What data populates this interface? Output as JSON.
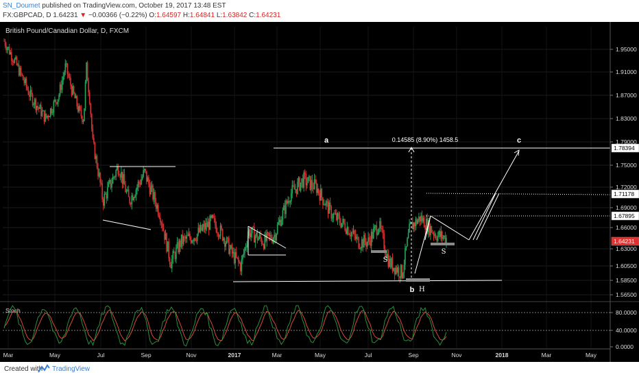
{
  "header": {
    "author": "SN_Doumet",
    "published": "published on TradingView.com, October 19, 2017 13:48 EST",
    "symbol": "FX:GBPCAD, D",
    "last": "1.64231",
    "change": "−0.00366 (−0.22%)",
    "o_label": "O:",
    "o_value": "1.64597",
    "h_label": "H:",
    "h_value": "1.64841",
    "l_label": "L:",
    "l_value": "1.63842",
    "c_label": "C:",
    "c_value": "1.64231"
  },
  "footer": {
    "created": "Created with",
    "brand": "TradingView",
    "logo_icon": "tradingview-logo-icon"
  },
  "colors": {
    "background": "#000000",
    "up": "#26a65b",
    "down": "#d93030",
    "drawing": "#ffffff",
    "stoch_k": "#2a8f3c",
    "stoch_d": "#d94a3a",
    "last_price_bg": "#e03030",
    "accent": "#3a7ecf"
  },
  "chart_data": {
    "type": "candlestick",
    "title": "British Pound/Canadian Dollar, D, FXCM",
    "y_ticks": [
      "1.95000",
      "1.91000",
      "1.87000",
      "1.83000",
      "1.79000",
      "1.75000",
      "1.72000",
      "1.69000",
      "1.66000",
      "1.63000",
      "1.60500",
      "1.58500",
      "1.56500"
    ],
    "ylim": [
      1.555,
      1.995
    ],
    "x_ticks": [
      "Mar",
      "May",
      "Jul",
      "Sep",
      "Nov",
      "2017",
      "Mar",
      "May",
      "Jul",
      "Sep",
      "Nov",
      "2018",
      "Mar",
      "May"
    ],
    "price_path": [
      [
        0,
        1.965
      ],
      [
        0.02,
        1.93
      ],
      [
        0.05,
        1.87
      ],
      [
        0.08,
        1.83
      ],
      [
        0.105,
        1.87
      ],
      [
        0.118,
        1.92
      ],
      [
        0.13,
        1.88
      ],
      [
        0.145,
        1.84
      ],
      [
        0.153,
        1.83
      ],
      [
        0.158,
        1.92
      ],
      [
        0.165,
        1.86
      ],
      [
        0.17,
        1.79
      ],
      [
        0.19,
        1.7
      ],
      [
        0.22,
        1.75
      ],
      [
        0.24,
        1.7
      ],
      [
        0.27,
        1.74
      ],
      [
        0.3,
        1.68
      ],
      [
        0.32,
        1.61
      ],
      [
        0.34,
        1.64
      ],
      [
        0.37,
        1.65
      ],
      [
        0.4,
        1.67
      ],
      [
        0.42,
        1.65
      ],
      [
        0.44,
        1.62
      ],
      [
        0.455,
        1.605
      ],
      [
        0.47,
        1.655
      ],
      [
        0.5,
        1.64
      ],
      [
        0.52,
        1.65
      ],
      [
        0.55,
        1.71
      ],
      [
        0.575,
        1.73
      ],
      [
        0.6,
        1.72
      ],
      [
        0.63,
        1.68
      ],
      [
        0.66,
        1.66
      ],
      [
        0.68,
        1.64
      ],
      [
        0.7,
        1.64
      ],
      [
        0.72,
        1.665
      ],
      [
        0.74,
        1.61
      ],
      [
        0.765,
        1.595
      ],
      [
        0.78,
        1.66
      ],
      [
        0.8,
        1.675
      ],
      [
        0.83,
        1.65
      ],
      [
        0.85,
        1.645
      ]
    ],
    "stoch_levels": [
      "80.0000",
      "40.0000",
      "0.0000"
    ],
    "stoch_label": "Stoch",
    "price_labels": [
      "1.78394",
      "1.71178",
      "1.67895",
      "1.64231"
    ],
    "annotations": {
      "wave_a": "a",
      "wave_b": "b",
      "wave_c": "c",
      "h_mark": "H",
      "s_left": "S",
      "s_right": "S",
      "measure": "0.14585 (8.90%) 1458.5"
    }
  }
}
